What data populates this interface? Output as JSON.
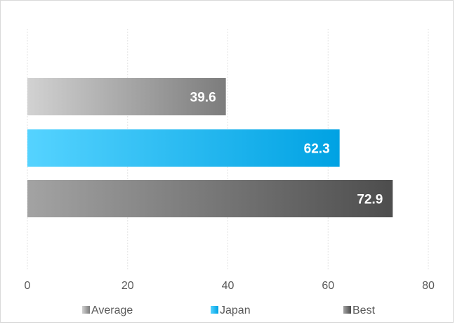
{
  "chart_data": {
    "type": "bar",
    "orientation": "horizontal",
    "series": [
      {
        "name": "Average",
        "value": 39.6,
        "color": "#8a8a8a",
        "gradient": [
          "#d2d2d2",
          "#7c7c7c"
        ]
      },
      {
        "name": "Japan",
        "value": 62.3,
        "color": "#00a6e6",
        "gradient": [
          "#55d3ff",
          "#00a2e3"
        ]
      },
      {
        "name": "Best",
        "value": 72.9,
        "color": "#555555",
        "gradient": [
          "#a3a3a3",
          "#4d4d4d"
        ]
      }
    ],
    "x_ticks": [
      "0",
      "20",
      "40",
      "60",
      "80"
    ],
    "xlim": [
      0,
      80
    ],
    "grid": "vertical dashed",
    "legend_position": "bottom",
    "data_labels": [
      "39.6",
      "62.3",
      "72.9"
    ]
  }
}
